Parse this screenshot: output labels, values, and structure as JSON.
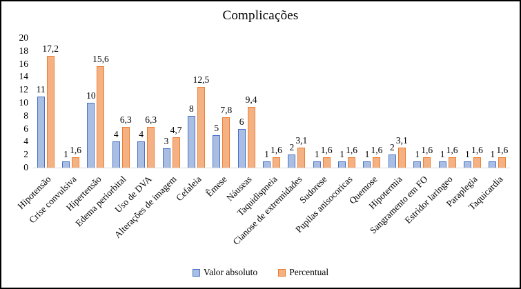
{
  "chart_data": {
    "type": "bar",
    "title": "Complicações",
    "categories": [
      "Hipotensão",
      "Crise convulsiva",
      "Hipertensão",
      "Edema periorbital",
      "Uso de DVA",
      "Alterações de imagem",
      "Cefaleia",
      "Êmese",
      "Náuseas",
      "Taquidispneia",
      "Cianose de extremidades",
      "Sudorese",
      "Pupilas anisocoricas",
      "Quemose",
      "Hipotermia",
      "Sangramento em FO",
      "Estridor laringeo",
      "Paraplegia",
      "Taquicardia"
    ],
    "series": [
      {
        "name": "Valor absoluto",
        "values": [
          11,
          1,
          10,
          4,
          4,
          3,
          8,
          5,
          6,
          1,
          2,
          1,
          1,
          1,
          2,
          1,
          1,
          1,
          1
        ],
        "labels": [
          "11",
          "1",
          "10",
          "4",
          "4",
          "3",
          "8",
          "5",
          "6",
          "1",
          "2",
          "1",
          "1",
          "1",
          "2",
          "1",
          "1",
          "1",
          "1"
        ],
        "fill": "#A9BEE2",
        "border": "#4472C4"
      },
      {
        "name": "Percentual",
        "values": [
          17.2,
          1.6,
          15.6,
          6.3,
          6.3,
          4.7,
          12.5,
          7.8,
          9.4,
          1.6,
          3.1,
          1.6,
          1.6,
          1.6,
          3.1,
          1.6,
          1.6,
          1.6,
          1.6
        ],
        "labels": [
          "17,2",
          "1,6",
          "15,6",
          "6,3",
          "6,3",
          "4,7",
          "12,5",
          "7,8",
          "9,4",
          "1,6",
          "3,1",
          "1,6",
          "1,6",
          "1,6",
          "3,1",
          "1,6",
          "1,6",
          "1,6",
          "1,6"
        ],
        "fill": "#F4B183",
        "border": "#ED7D31"
      }
    ],
    "ylim": [
      0,
      20
    ],
    "yticks": [
      "0",
      "2",
      "4",
      "6",
      "8",
      "10",
      "12",
      "14",
      "16",
      "18",
      "20"
    ],
    "grid": false,
    "legend_position": "bottom",
    "axis_line_color": "#D9D9D9",
    "text_color": "#000000"
  }
}
